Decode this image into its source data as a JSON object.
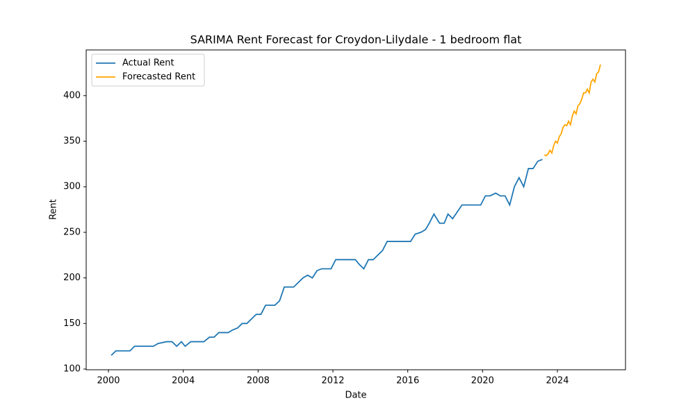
{
  "chart_data": {
    "type": "line",
    "title": "SARIMA Rent Forecast for Croydon-Lilydale - 1 bedroom flat",
    "xlabel": "Date",
    "ylabel": "Rent",
    "xlim": [
      1998.81,
      2027.64
    ],
    "xticks": [
      2000,
      2004,
      2008,
      2012,
      2016,
      2020,
      2024
    ],
    "ylim": [
      99.24,
      450.1
    ],
    "yticks": [
      100,
      150,
      200,
      250,
      300,
      350,
      400
    ],
    "legend": "upper left",
    "grid": false,
    "series": [
      {
        "name": "Actual Rent",
        "color": "#1f77b4",
        "x": [
          2000.15,
          2000.4,
          2001.15,
          2001.4,
          2002.4,
          2002.65,
          2003.1,
          2003.4,
          2003.65,
          2003.9,
          2004.1,
          2004.4,
          2005.1,
          2005.4,
          2005.65,
          2005.9,
          2006.4,
          2006.65,
          2006.9,
          2007.15,
          2007.4,
          2007.9,
          2008.15,
          2008.4,
          2008.9,
          2009.15,
          2009.4,
          2009.9,
          2010.4,
          2010.65,
          2010.9,
          2011.15,
          2011.4,
          2011.9,
          2012.15,
          2013.2,
          2013.4,
          2013.65,
          2013.9,
          2014.15,
          2014.65,
          2014.9,
          2016.15,
          2016.4,
          2016.7,
          2016.95,
          2017.15,
          2017.4,
          2017.7,
          2017.95,
          2018.15,
          2018.4,
          2018.9,
          2019.9,
          2020.15,
          2020.4,
          2020.7,
          2020.95,
          2021.2,
          2021.45,
          2021.7,
          2021.95,
          2022.2,
          2022.45,
          2022.7,
          2022.95,
          2023.2
        ],
        "values": [
          115,
          120,
          120,
          125,
          125,
          128,
          130,
          130,
          125,
          130,
          125,
          130,
          130,
          135,
          135,
          140,
          140,
          143,
          145,
          150,
          150,
          160,
          160,
          170,
          170,
          175,
          190,
          190,
          200,
          203,
          200,
          208,
          210,
          210,
          220,
          220,
          215,
          210,
          220,
          220,
          230,
          240,
          240,
          248,
          250,
          253,
          260,
          270,
          260,
          260,
          270,
          265,
          280,
          280,
          290,
          290,
          293,
          290,
          290,
          280,
          300,
          310,
          300,
          320,
          320,
          328,
          330
        ]
      },
      {
        "name": "Forecasted Rent",
        "color": "#ffa500",
        "x": [
          2023.3,
          2023.4,
          2023.5,
          2023.6,
          2023.7,
          2023.8,
          2023.9,
          2024.0,
          2024.1,
          2024.2,
          2024.3,
          2024.4,
          2024.5,
          2024.6,
          2024.7,
          2024.8,
          2024.9,
          2025.0,
          2025.1,
          2025.2,
          2025.3,
          2025.4,
          2025.5,
          2025.6,
          2025.7,
          2025.8,
          2025.9,
          2026.0,
          2026.1,
          2026.2,
          2026.3
        ],
        "values": [
          335,
          334,
          336,
          340,
          337,
          345,
          350,
          348,
          355,
          358,
          365,
          368,
          367,
          372,
          368,
          378,
          383,
          380,
          389,
          391,
          396,
          403,
          403,
          407,
          403,
          415,
          418,
          415,
          424,
          426,
          434
        ]
      }
    ]
  }
}
